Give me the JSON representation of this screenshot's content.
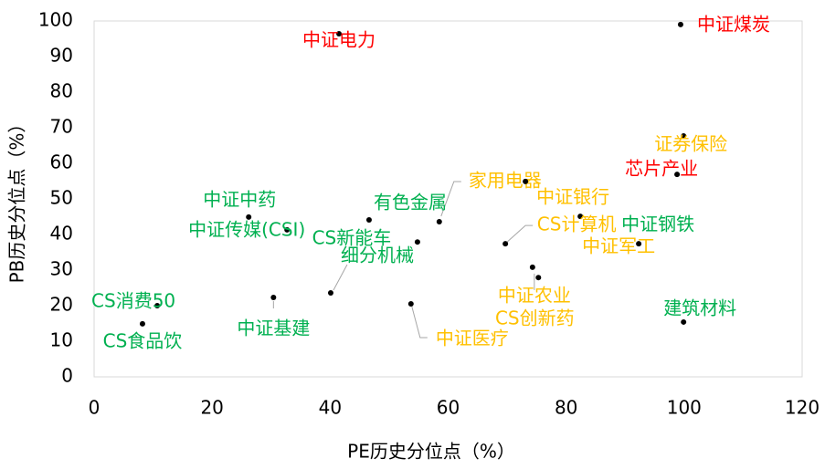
{
  "chart_data": {
    "type": "scatter",
    "x_label": "PE历史分位点（%）",
    "y_label": "PB历史分位点（%）",
    "xlim": [
      0,
      120
    ],
    "ylim": [
      0,
      100
    ],
    "xticks": [
      0,
      20,
      40,
      60,
      80,
      100,
      120
    ],
    "yticks": [
      0,
      10,
      20,
      30,
      40,
      50,
      60,
      70,
      80,
      90,
      100
    ],
    "point_color": "#000000",
    "points": [
      {
        "name": "中证电力",
        "x": 41.5,
        "y": 96.4,
        "color": "#ff0000"
      },
      {
        "name": "中证煤炭",
        "x": 99.4,
        "y": 99.0,
        "color": "#ff0000"
      },
      {
        "name": "证券保险",
        "x": 99.9,
        "y": 67.7,
        "color": "#ffc000"
      },
      {
        "name": "芯片产业",
        "x": 98.8,
        "y": 56.9,
        "color": "#ff0000"
      },
      {
        "name": "家用电器",
        "x": 58.5,
        "y": 43.6,
        "color": "#ffc000"
      },
      {
        "name": "中证银行",
        "x": 73.1,
        "y": 54.9,
        "color": "#ffc000"
      },
      {
        "name": "中证军工",
        "x": 82.4,
        "y": 45.1,
        "color": "#ffc000"
      },
      {
        "name": "中证钢铁",
        "x": 92.3,
        "y": 37.4,
        "color": "#00b050"
      },
      {
        "name": "CS计算机",
        "x": 69.7,
        "y": 37.4,
        "color": "#ffc000"
      },
      {
        "name": "中证农业",
        "x": 74.3,
        "y": 30.8,
        "color": "#ffc000"
      },
      {
        "name": "CS创新药",
        "x": 75.3,
        "y": 27.9,
        "color": "#ffc000"
      },
      {
        "name": "中证医疗",
        "x": 53.7,
        "y": 20.5,
        "color": "#ffc000"
      },
      {
        "name": "有色金属",
        "x": 46.6,
        "y": 44.1,
        "color": "#00b050"
      },
      {
        "name": "中证中药",
        "x": 26.2,
        "y": 44.9,
        "color": "#00b050"
      },
      {
        "name": "中证传媒(CSI)",
        "x": 32.7,
        "y": 41.3,
        "color": "#00b050"
      },
      {
        "name": "CS新能车",
        "x": 54.8,
        "y": 37.9,
        "color": "#00b050"
      },
      {
        "name": "细分机械",
        "x": 40.1,
        "y": 23.6,
        "color": "#00b050"
      },
      {
        "name": "中证基建",
        "x": 30.4,
        "y": 22.3,
        "color": "#00b050"
      },
      {
        "name": "CS消费50",
        "x": 10.7,
        "y": 20.0,
        "color": "#00b050"
      },
      {
        "name": "CS食品饮",
        "x": 8.2,
        "y": 14.9,
        "color": "#00b050"
      },
      {
        "name": "建筑材料",
        "x": 99.9,
        "y": 15.4,
        "color": "#00b050"
      }
    ]
  }
}
